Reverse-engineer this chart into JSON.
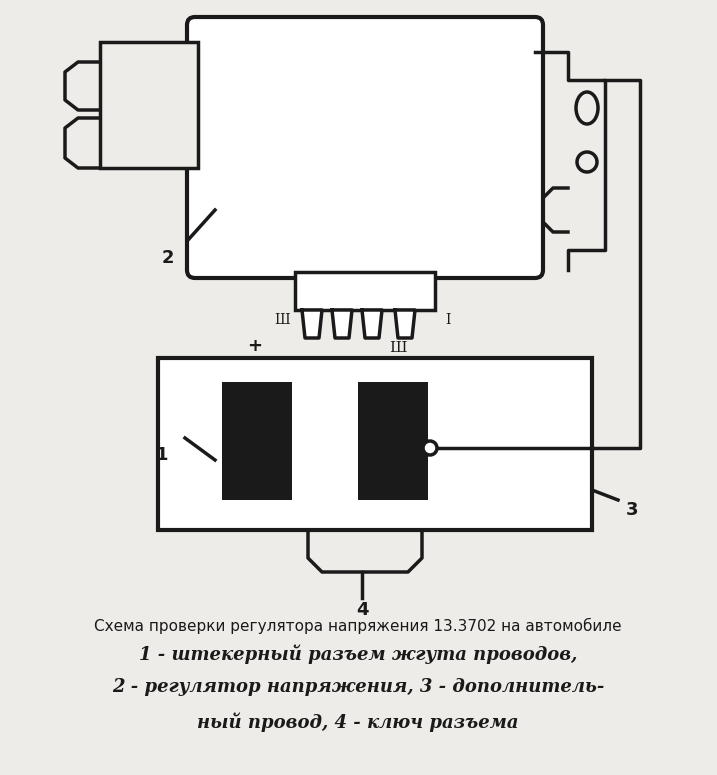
{
  "bg_color": "#eeece8",
  "line_color": "#1a1a1a",
  "title_text": "Схема проверки регулятора напряжения 13.3702 на автомобиле",
  "legend_line1": "1 - штекерный разъем жгута проводов,",
  "legend_line2": "2 - регулятор напряжения, 3 - дополнитель-",
  "legend_line3": "ный провод, 4 - ключ разъема",
  "title_fontsize": 11,
  "legend_fontsize": 13
}
